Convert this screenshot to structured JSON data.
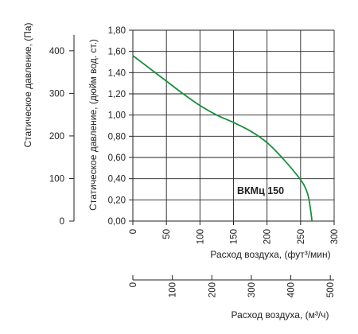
{
  "chart_data": {
    "type": "line",
    "model_label": "ВКМц 150",
    "color": "#1a8f3c",
    "grid": true,
    "primary_x": {
      "label": "Расход воздуха, (фут³/мин)",
      "range": [
        0,
        300
      ],
      "ticks": [
        0,
        50,
        100,
        150,
        200,
        250,
        300
      ]
    },
    "secondary_x": {
      "label": "Расход воздуха, (м³/ч)",
      "range": [
        0,
        509.7
      ],
      "ticks": [
        0,
        100,
        200,
        300,
        400,
        500
      ]
    },
    "primary_y": {
      "label": "Статическое давление, (дюйм вод. ст.)",
      "range": [
        0,
        1.8
      ],
      "ticks": [
        "0,00",
        "0,20",
        "0,40",
        "0,60",
        "0,80",
        "1,00",
        "1,20",
        "1,40",
        "1,60",
        "1,80"
      ]
    },
    "secondary_y": {
      "label": "Статическое давление, (Па)",
      "range": [
        0,
        448.3
      ],
      "ticks": [
        0,
        100,
        200,
        300,
        400
      ]
    },
    "series": [
      {
        "x": [
          0,
          25,
          50,
          75,
          100,
          125,
          150,
          175,
          200,
          225,
          250,
          258,
          262,
          265,
          267
        ],
        "y": [
          1.56,
          1.44,
          1.32,
          1.2,
          1.09,
          1.0,
          0.93,
          0.85,
          0.74,
          0.58,
          0.39,
          0.3,
          0.22,
          0.1,
          0.0
        ]
      }
    ]
  }
}
